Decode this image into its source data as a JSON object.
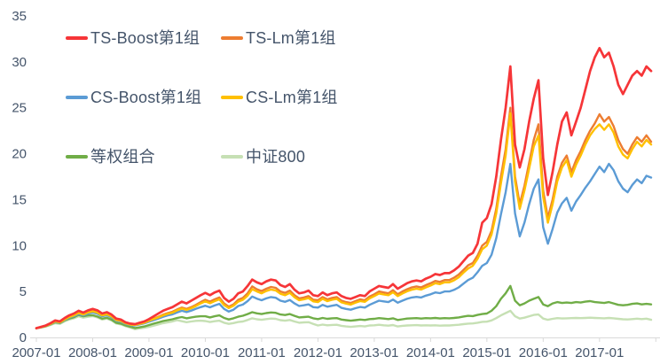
{
  "chart_data": {
    "type": "line",
    "title": "",
    "xlabel": "",
    "ylabel": "",
    "background_color": "#ffffff",
    "grid": false,
    "axis_text_color": "#44546a",
    "axis_line_color": "#d9d9d9",
    "ylim": [
      0,
      35
    ],
    "y_ticks": [
      0,
      5,
      10,
      15,
      20,
      25,
      30,
      35
    ],
    "x_tick_labels": [
      "2007-01",
      "2008-01",
      "2009-01",
      "2010-01",
      "2011-01",
      "2012-01",
      "2013-01",
      "2014-01",
      "2015-01",
      "2016-01",
      "2017-01"
    ],
    "x_start": "2007-01",
    "x_end": "2017-12",
    "x_frequency": "monthly",
    "legend_position": "top-left",
    "series": [
      {
        "name": "TS-Boost第1组",
        "color": "#f63538",
        "values": [
          1.0,
          1.15,
          1.3,
          1.55,
          1.85,
          1.75,
          2.1,
          2.4,
          2.6,
          2.9,
          2.7,
          2.95,
          3.1,
          2.95,
          2.6,
          2.75,
          2.5,
          2.05,
          1.95,
          1.65,
          1.5,
          1.45,
          1.6,
          1.75,
          2.0,
          2.3,
          2.6,
          2.9,
          3.1,
          3.3,
          3.6,
          3.9,
          3.7,
          4.0,
          4.3,
          4.6,
          4.85,
          4.6,
          4.9,
          5.1,
          4.3,
          3.9,
          4.2,
          4.8,
          5.0,
          5.6,
          6.3,
          6.0,
          5.8,
          6.1,
          6.3,
          6.2,
          5.7,
          5.5,
          5.8,
          5.2,
          4.8,
          4.9,
          5.1,
          4.6,
          4.5,
          4.9,
          4.6,
          4.8,
          4.9,
          4.5,
          4.3,
          4.2,
          4.4,
          4.6,
          4.5,
          5.0,
          5.3,
          5.6,
          5.5,
          5.4,
          5.8,
          5.3,
          5.6,
          5.9,
          6.1,
          6.2,
          6.1,
          6.4,
          6.6,
          6.9,
          6.8,
          7.0,
          7.0,
          7.3,
          7.7,
          8.3,
          8.9,
          9.2,
          10.2,
          12.5,
          13.0,
          14.5,
          17.5,
          21.5,
          25.0,
          29.5,
          21.0,
          18.5,
          20.5,
          23.5,
          26.0,
          28.0,
          19.5,
          15.5,
          18.0,
          21.0,
          23.5,
          24.5,
          22.0,
          23.5,
          25.0,
          27.0,
          29.0,
          30.5,
          31.5,
          30.5,
          31.0,
          29.5,
          27.5,
          26.5,
          27.5,
          28.5,
          29.0,
          28.5,
          29.5,
          29.0
        ]
      },
      {
        "name": "TS-Lm第1组",
        "color": "#ed7d31",
        "values": [
          1.0,
          1.13,
          1.27,
          1.5,
          1.78,
          1.68,
          2.0,
          2.28,
          2.45,
          2.72,
          2.55,
          2.78,
          2.9,
          2.76,
          2.45,
          2.58,
          2.35,
          1.95,
          1.85,
          1.58,
          1.44,
          1.4,
          1.53,
          1.66,
          1.88,
          2.05,
          2.25,
          2.48,
          2.65,
          2.8,
          3.05,
          3.25,
          3.1,
          3.3,
          3.55,
          3.85,
          4.1,
          3.9,
          4.15,
          4.35,
          3.7,
          3.35,
          3.6,
          4.1,
          4.3,
          4.8,
          5.55,
          5.25,
          5.05,
          5.3,
          5.5,
          5.4,
          5.0,
          4.85,
          5.1,
          4.6,
          4.25,
          4.35,
          4.5,
          4.1,
          4.05,
          4.4,
          4.15,
          4.3,
          4.4,
          4.0,
          3.85,
          3.75,
          3.95,
          4.15,
          4.05,
          4.45,
          4.7,
          5.0,
          4.9,
          4.8,
          5.15,
          4.7,
          5.0,
          5.25,
          5.45,
          5.55,
          5.45,
          5.7,
          5.9,
          6.15,
          6.05,
          6.25,
          6.25,
          6.5,
          6.85,
          7.35,
          7.85,
          8.1,
          8.9,
          10.0,
          10.4,
          11.6,
          14.0,
          17.5,
          20.5,
          25.0,
          17.5,
          14.5,
          16.5,
          19.0,
          21.5,
          23.2,
          16.0,
          13.0,
          15.0,
          17.5,
          19.0,
          19.8,
          18.0,
          19.3,
          20.3,
          21.5,
          22.5,
          23.3,
          24.3,
          23.5,
          24.0,
          23.0,
          21.5,
          20.5,
          20.0,
          21.0,
          21.8,
          21.3,
          22.0,
          21.3
        ]
      },
      {
        "name": "CS-Boost第1组",
        "color": "#5b9bd5",
        "values": [
          1.0,
          1.12,
          1.24,
          1.45,
          1.7,
          1.6,
          1.9,
          2.15,
          2.32,
          2.55,
          2.4,
          2.6,
          2.72,
          2.58,
          2.3,
          2.42,
          2.2,
          1.82,
          1.72,
          1.48,
          1.35,
          1.3,
          1.42,
          1.53,
          1.72,
          1.88,
          2.05,
          2.25,
          2.4,
          2.52,
          2.72,
          2.9,
          2.76,
          2.92,
          3.12,
          3.3,
          3.45,
          3.28,
          3.48,
          3.65,
          3.1,
          2.82,
          3.02,
          3.42,
          3.58,
          3.95,
          4.45,
          4.22,
          4.05,
          4.25,
          4.4,
          4.32,
          4.0,
          3.88,
          4.08,
          3.7,
          3.42,
          3.5,
          3.6,
          3.3,
          3.25,
          3.55,
          3.35,
          3.45,
          3.55,
          3.22,
          3.1,
          3.02,
          3.18,
          3.32,
          3.25,
          3.55,
          3.78,
          4.0,
          3.92,
          3.85,
          4.12,
          3.78,
          4.0,
          4.2,
          4.35,
          4.42,
          4.35,
          4.55,
          4.7,
          4.9,
          4.82,
          5.0,
          5.0,
          5.18,
          5.45,
          5.85,
          6.25,
          6.5,
          7.1,
          7.8,
          8.1,
          9.0,
          10.8,
          13.4,
          15.8,
          18.9,
          13.5,
          11.0,
          12.5,
          14.5,
          16.2,
          17.2,
          12.0,
          10.2,
          11.8,
          13.6,
          14.6,
          15.2,
          13.8,
          14.8,
          15.5,
          16.3,
          17.0,
          17.8,
          18.6,
          18.0,
          18.9,
          18.2,
          17.0,
          16.2,
          15.8,
          16.6,
          17.2,
          16.8,
          17.6,
          17.4
        ]
      },
      {
        "name": "CS-Lm第1组",
        "color": "#ffc000",
        "values": [
          1.0,
          1.12,
          1.25,
          1.47,
          1.74,
          1.64,
          1.95,
          2.22,
          2.4,
          2.66,
          2.5,
          2.72,
          2.84,
          2.7,
          2.4,
          2.52,
          2.3,
          1.9,
          1.8,
          1.54,
          1.4,
          1.36,
          1.48,
          1.6,
          1.82,
          2.0,
          2.18,
          2.4,
          2.56,
          2.7,
          2.95,
          3.14,
          3.0,
          3.18,
          3.42,
          3.7,
          3.92,
          3.72,
          3.95,
          4.15,
          3.52,
          3.2,
          3.45,
          3.9,
          4.1,
          4.55,
          5.25,
          5.0,
          4.8,
          5.05,
          5.22,
          5.12,
          4.75,
          4.6,
          4.85,
          4.38,
          4.05,
          4.15,
          4.28,
          3.92,
          3.85,
          4.2,
          3.95,
          4.1,
          4.2,
          3.82,
          3.68,
          3.58,
          3.78,
          3.95,
          3.88,
          4.25,
          4.5,
          4.78,
          4.68,
          4.6,
          4.92,
          4.5,
          4.78,
          5.02,
          5.2,
          5.3,
          5.22,
          5.45,
          5.65,
          5.9,
          5.8,
          6.0,
          6.0,
          6.22,
          6.55,
          7.05,
          7.5,
          7.8,
          8.55,
          9.6,
          10.0,
          11.2,
          13.5,
          16.8,
          19.8,
          24.4,
          17.0,
          14.0,
          16.0,
          18.4,
          20.8,
          22.0,
          15.3,
          12.5,
          14.5,
          17.0,
          18.5,
          19.3,
          17.5,
          18.8,
          19.8,
          21.0,
          22.0,
          22.7,
          23.2,
          22.6,
          23.2,
          22.3,
          20.8,
          19.9,
          19.5,
          20.5,
          21.3,
          20.8,
          21.5,
          21.0
        ]
      },
      {
        "name": "等权组合",
        "color": "#70ad47",
        "values": [
          1.0,
          1.1,
          1.22,
          1.42,
          1.65,
          1.56,
          1.85,
          2.05,
          2.2,
          2.45,
          2.3,
          2.4,
          2.42,
          2.28,
          2.04,
          2.14,
          1.94,
          1.6,
          1.5,
          1.3,
          1.16,
          1.02,
          1.1,
          1.2,
          1.35,
          1.5,
          1.64,
          1.78,
          1.88,
          1.98,
          2.12,
          2.22,
          2.08,
          2.18,
          2.26,
          2.3,
          2.3,
          2.18,
          2.3,
          2.4,
          2.12,
          1.96,
          2.08,
          2.26,
          2.36,
          2.55,
          2.75,
          2.62,
          2.55,
          2.65,
          2.72,
          2.68,
          2.5,
          2.44,
          2.55,
          2.35,
          2.18,
          2.22,
          2.26,
          2.08,
          2.0,
          2.12,
          2.02,
          2.08,
          2.1,
          1.95,
          1.88,
          1.82,
          1.88,
          1.95,
          1.9,
          2.0,
          2.02,
          2.1,
          2.05,
          2.0,
          2.08,
          1.9,
          1.98,
          2.05,
          2.08,
          2.1,
          2.05,
          2.1,
          2.08,
          2.12,
          2.06,
          2.1,
          2.08,
          2.12,
          2.18,
          2.28,
          2.35,
          2.32,
          2.45,
          2.55,
          2.6,
          2.9,
          3.4,
          4.2,
          4.8,
          5.6,
          4.0,
          3.5,
          3.7,
          4.0,
          4.2,
          4.4,
          3.6,
          3.4,
          3.7,
          3.85,
          3.75,
          3.8,
          3.75,
          3.85,
          3.8,
          3.9,
          3.95,
          3.85,
          3.8,
          3.75,
          3.85,
          3.7,
          3.55,
          3.5,
          3.55,
          3.65,
          3.7,
          3.6,
          3.65,
          3.6
        ]
      },
      {
        "name": "中证800",
        "color": "#c6e0b4",
        "values": [
          1.0,
          1.08,
          1.18,
          1.35,
          1.55,
          1.48,
          1.75,
          1.95,
          2.08,
          2.3,
          2.15,
          2.25,
          2.32,
          2.18,
          1.95,
          2.05,
          1.85,
          1.52,
          1.42,
          1.22,
          1.08,
          0.9,
          0.98,
          1.05,
          1.15,
          1.28,
          1.42,
          1.55,
          1.65,
          1.75,
          1.88,
          1.76,
          1.66,
          1.74,
          1.8,
          1.82,
          1.78,
          1.68,
          1.76,
          1.82,
          1.6,
          1.48,
          1.56,
          1.68,
          1.74,
          1.9,
          2.08,
          1.98,
          1.92,
          2.0,
          2.05,
          2.02,
          1.88,
          1.82,
          1.9,
          1.74,
          1.6,
          1.64,
          1.66,
          1.48,
          1.3,
          1.4,
          1.32,
          1.36,
          1.38,
          1.26,
          1.2,
          1.15,
          1.2,
          1.24,
          1.2,
          1.3,
          1.32,
          1.38,
          1.32,
          1.28,
          1.35,
          1.2,
          1.26,
          1.3,
          1.32,
          1.34,
          1.3,
          1.32,
          1.3,
          1.32,
          1.28,
          1.3,
          1.3,
          1.34,
          1.38,
          1.45,
          1.5,
          1.52,
          1.6,
          1.7,
          1.72,
          1.85,
          2.1,
          2.4,
          2.65,
          2.9,
          2.3,
          2.05,
          2.15,
          2.3,
          2.45,
          2.5,
          2.05,
          1.92,
          2.02,
          2.1,
          2.06,
          2.08,
          2.1,
          2.12,
          2.1,
          2.12,
          2.15,
          2.12,
          2.1,
          2.08,
          2.12,
          2.08,
          2.02,
          1.98,
          1.96,
          2.0,
          2.04,
          2.0,
          2.04,
          1.92
        ]
      }
    ]
  }
}
